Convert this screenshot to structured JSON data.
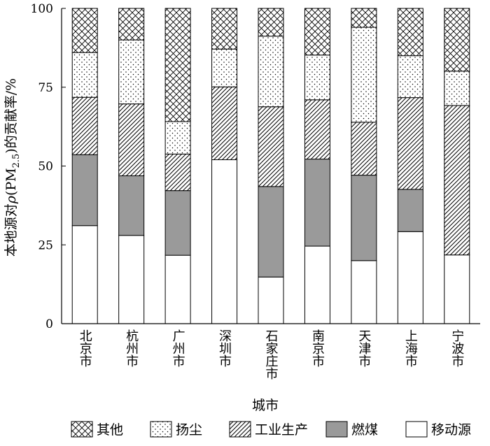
{
  "chart_data": {
    "type": "bar",
    "stacked": true,
    "categories": [
      "北京市",
      "杭州市",
      "广州市",
      "深圳市",
      "石家庄市",
      "南京市",
      "天津市",
      "上海市",
      "宁波市"
    ],
    "series": [
      {
        "name": "移动源",
        "pattern": "white",
        "values": [
          31.1,
          28.0,
          21.7,
          52.0,
          14.8,
          24.6,
          20.0,
          29.2,
          21.8
        ]
      },
      {
        "name": "燃煤",
        "pattern": "gray",
        "values": [
          22.5,
          18.9,
          20.5,
          0,
          28.7,
          27.6,
          27.1,
          13.4,
          0
        ]
      },
      {
        "name": "工业生产",
        "pattern": "diagonal",
        "values": [
          18.2,
          22.8,
          11.6,
          23.1,
          25.3,
          18.8,
          16.8,
          29.1,
          47.4
        ]
      },
      {
        "name": "扬尘",
        "pattern": "dots",
        "values": [
          14.2,
          20.3,
          10.3,
          12.0,
          22.4,
          14.2,
          30.1,
          13.3,
          10.9
        ]
      },
      {
        "name": "其他",
        "pattern": "crosshatch",
        "values": [
          14.0,
          10.0,
          35.9,
          12.9,
          8.8,
          14.8,
          6.0,
          15.0,
          19.9
        ]
      }
    ],
    "ylim": [
      0,
      100
    ],
    "yticks": [
      "0",
      "25",
      "50",
      "75",
      "100"
    ],
    "ylabel_parts": [
      "本地源对",
      "ρ",
      "(PM",
      "2.5",
      ")的贡献率/%"
    ],
    "xlabel": "城市",
    "legend": {
      "position": "bottom",
      "order": [
        "其他",
        "扬尘",
        "工业生产",
        "燃煤",
        "移动源"
      ]
    },
    "grid": false,
    "colors": {
      "gray": "#9a9a9a",
      "white": "#ffffff",
      "line": "#000000"
    }
  }
}
